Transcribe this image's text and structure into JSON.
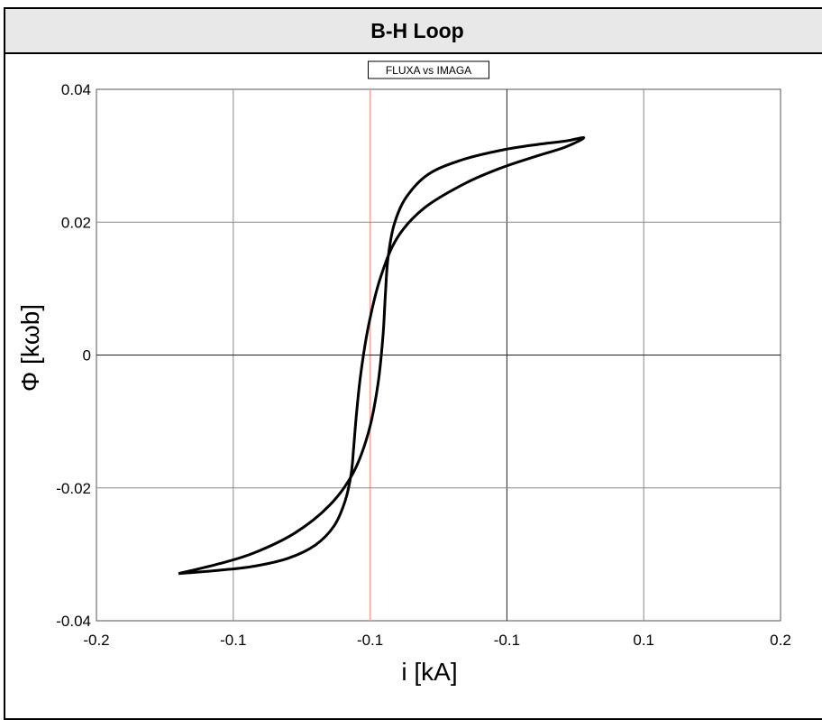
{
  "window": {
    "title": "B-H Loop"
  },
  "chart_data": {
    "type": "line",
    "title": "B-H Loop",
    "legend": "FLUXA vs IMAGA",
    "xlabel": "i [kA]",
    "ylabel": "Φ [kωb]",
    "xlim": [
      -0.2,
      0.2
    ],
    "ylim": [
      -0.04,
      0.04
    ],
    "x_tick_labels": [
      "-0.2",
      "-0.1",
      "-0.1",
      "-0.1",
      "0.1",
      "0.2"
    ],
    "y_tick_labels": [
      "0.04",
      "0.02",
      "0",
      "-0.02",
      "-0.04"
    ],
    "grid": true,
    "colors": {
      "curve": "#000000",
      "marker_line": "#f4a39a",
      "grid": "#888888"
    },
    "series": [
      {
        "name": "FLUXA vs IMAGA",
        "x": [
          -0.152,
          -0.128,
          -0.108,
          -0.088,
          -0.072,
          -0.061,
          -0.0545,
          -0.051,
          -0.0495,
          -0.048,
          -0.0455,
          -0.041,
          -0.034,
          -0.024,
          -0.008,
          0.016,
          0.038,
          0.058,
          0.074,
          0.085,
          0.074,
          0.058,
          0.038,
          0.014,
          -0.006,
          -0.019,
          -0.026,
          -0.0295,
          -0.031,
          -0.0325,
          -0.0355,
          -0.041,
          -0.05,
          -0.064,
          -0.084,
          -0.108,
          -0.128,
          -0.152
        ],
        "y": [
          -0.0329,
          -0.0324,
          -0.0318,
          -0.0306,
          -0.0286,
          -0.0257,
          -0.0219,
          -0.0178,
          -0.0136,
          -0.009,
          -0.0029,
          0.0043,
          0.0116,
          0.0177,
          0.0222,
          0.0259,
          0.0283,
          0.03,
          0.0313,
          0.0327,
          0.0322,
          0.0317,
          0.0309,
          0.0294,
          0.0272,
          0.0237,
          0.0196,
          0.0146,
          0.0094,
          0.0027,
          -0.0046,
          -0.0117,
          -0.0178,
          -0.0227,
          -0.0268,
          -0.0298,
          -0.0314,
          -0.0329
        ]
      }
    ]
  }
}
